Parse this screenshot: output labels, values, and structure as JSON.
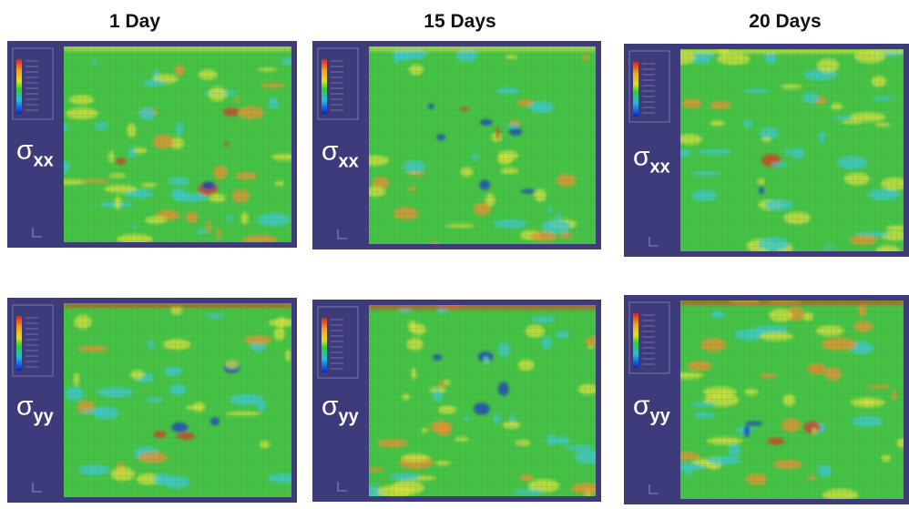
{
  "columns": [
    {
      "title": "1 Day"
    },
    {
      "title": "15 Days"
    },
    {
      "title": "20 Days"
    }
  ],
  "rows": [
    {
      "label": {
        "symbol": "σ",
        "subscript": "xx"
      }
    },
    {
      "label": {
        "symbol": "σ",
        "subscript": "yy"
      }
    }
  ]
}
